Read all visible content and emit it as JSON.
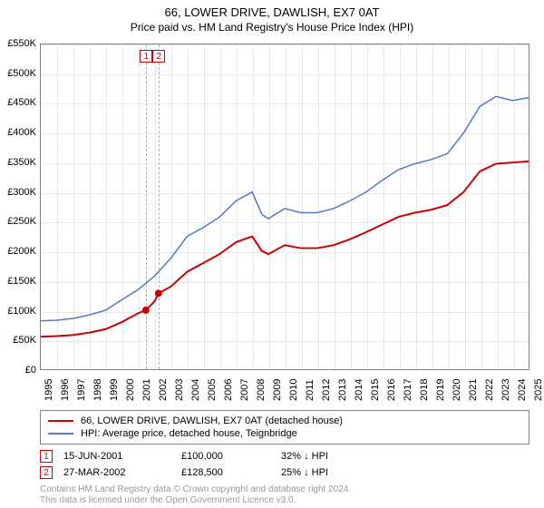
{
  "title": "66, LOWER DRIVE, DAWLISH, EX7 0AT",
  "subtitle": "Price paid vs. HM Land Registry's House Price Index (HPI)",
  "chart": {
    "type": "line",
    "xlim": [
      1995,
      2025
    ],
    "ylim": [
      0,
      550000
    ],
    "ytick_step": 50000,
    "ytick_labels": [
      "£0",
      "£50K",
      "£100K",
      "£150K",
      "£200K",
      "£250K",
      "£300K",
      "£350K",
      "£400K",
      "£450K",
      "£500K",
      "£550K"
    ],
    "xtick_step": 1,
    "xtick_labels": [
      "1995",
      "1996",
      "1997",
      "1998",
      "1999",
      "2000",
      "2001",
      "2002",
      "2003",
      "2004",
      "2005",
      "2006",
      "2007",
      "2008",
      "2009",
      "2010",
      "2011",
      "2012",
      "2013",
      "2014",
      "2015",
      "2016",
      "2017",
      "2018",
      "2019",
      "2020",
      "2021",
      "2022",
      "2023",
      "2024",
      "2025"
    ],
    "grid_color": "#e8e8e8",
    "border_color": "#808080",
    "background_color": "#ffffff",
    "series": [
      {
        "label": "66, LOWER DRIVE, DAWLISH, EX7 0AT (detached house)",
        "color": "#cc0000",
        "line_width": 2,
        "data": [
          [
            1995,
            55000
          ],
          [
            1996,
            56000
          ],
          [
            1997,
            58000
          ],
          [
            1998,
            62000
          ],
          [
            1999,
            68000
          ],
          [
            2000,
            80000
          ],
          [
            2001,
            95000
          ],
          [
            2001.46,
            100000
          ],
          [
            2002,
            115000
          ],
          [
            2002.24,
            128500
          ],
          [
            2003,
            140000
          ],
          [
            2004,
            165000
          ],
          [
            2005,
            180000
          ],
          [
            2006,
            195000
          ],
          [
            2007,
            215000
          ],
          [
            2008,
            225000
          ],
          [
            2008.6,
            200000
          ],
          [
            2009,
            195000
          ],
          [
            2010,
            210000
          ],
          [
            2011,
            205000
          ],
          [
            2012,
            205000
          ],
          [
            2013,
            210000
          ],
          [
            2014,
            220000
          ],
          [
            2015,
            232000
          ],
          [
            2016,
            245000
          ],
          [
            2017,
            258000
          ],
          [
            2018,
            265000
          ],
          [
            2019,
            270000
          ],
          [
            2020,
            278000
          ],
          [
            2021,
            300000
          ],
          [
            2022,
            335000
          ],
          [
            2023,
            348000
          ],
          [
            2024,
            350000
          ],
          [
            2025,
            352000
          ]
        ],
        "markers": [
          {
            "x": 2001.46,
            "y": 100000
          },
          {
            "x": 2002.24,
            "y": 128500
          }
        ]
      },
      {
        "label": "HPI: Average price, detached house, Teignbridge",
        "color": "#5577cc",
        "line_width": 1.5,
        "data": [
          [
            1995,
            82000
          ],
          [
            1996,
            83000
          ],
          [
            1997,
            86000
          ],
          [
            1998,
            92000
          ],
          [
            1999,
            100000
          ],
          [
            2000,
            118000
          ],
          [
            2001,
            135000
          ],
          [
            2002,
            158000
          ],
          [
            2003,
            188000
          ],
          [
            2004,
            225000
          ],
          [
            2005,
            240000
          ],
          [
            2006,
            258000
          ],
          [
            2007,
            285000
          ],
          [
            2008,
            300000
          ],
          [
            2008.6,
            262000
          ],
          [
            2009,
            255000
          ],
          [
            2010,
            272000
          ],
          [
            2011,
            265000
          ],
          [
            2012,
            265000
          ],
          [
            2013,
            272000
          ],
          [
            2014,
            285000
          ],
          [
            2015,
            300000
          ],
          [
            2016,
            320000
          ],
          [
            2017,
            338000
          ],
          [
            2018,
            348000
          ],
          [
            2019,
            355000
          ],
          [
            2020,
            365000
          ],
          [
            2021,
            400000
          ],
          [
            2022,
            445000
          ],
          [
            2023,
            462000
          ],
          [
            2024,
            455000
          ],
          [
            2025,
            460000
          ]
        ]
      }
    ],
    "event_markers": [
      {
        "badge": "1",
        "x": 2001.46
      },
      {
        "badge": "2",
        "x": 2002.24
      }
    ]
  },
  "legend": [
    {
      "color": "#cc0000",
      "label": "66, LOWER DRIVE, DAWLISH, EX7 0AT (detached house)"
    },
    {
      "color": "#5577cc",
      "label": "HPI: Average price, detached house, Teignbridge"
    }
  ],
  "events": [
    {
      "badge": "1",
      "date": "15-JUN-2001",
      "price": "£100,000",
      "delta": "32%",
      "arrow": "↓",
      "ref": "HPI"
    },
    {
      "badge": "2",
      "date": "27-MAR-2002",
      "price": "£128,500",
      "delta": "25%",
      "arrow": "↓",
      "ref": "HPI"
    }
  ],
  "footnote_line1": "Contains HM Land Registry data © Crown copyright and database right 2024.",
  "footnote_line2": "This data is licensed under the Open Government Licence v3.0."
}
